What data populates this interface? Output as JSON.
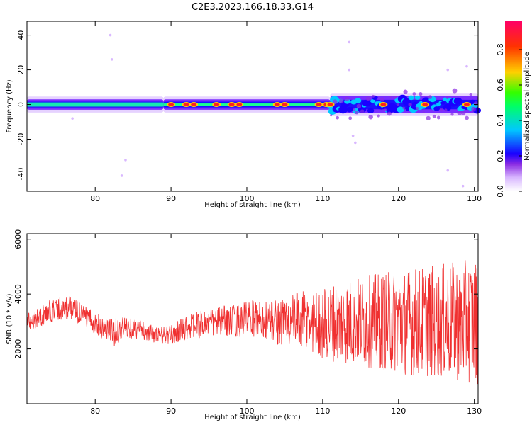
{
  "figure": {
    "title": "C2E3.2023.166.18.33.G14"
  },
  "chart_data": [
    {
      "type": "heatmap",
      "title": "C2E3.2023.166.18.33.G14",
      "xlabel": "Height of straight line (km)",
      "ylabel": "Frequency (Hz)",
      "xlim": [
        71,
        130.5
      ],
      "ylim": [
        -50,
        48
      ],
      "x_ticks": [
        80,
        90,
        100,
        110,
        120,
        130
      ],
      "y_ticks": [
        -40,
        -20,
        0,
        20,
        40
      ],
      "colorbar": {
        "label": "Normalized spectral amplitude",
        "ticks": [
          0.0,
          0.2,
          0.4,
          0.6,
          0.8
        ],
        "range": [
          0,
          0.96
        ],
        "colors": [
          "#ffffff",
          "#d9b8ff",
          "#8a2be2",
          "#1a00ff",
          "#00c8ff",
          "#00ff66",
          "#33ff00",
          "#ffd000",
          "#ff3300",
          "#ff0066"
        ]
      },
      "band": {
        "center_hz": 0,
        "segments": [
          {
            "x_start": 71,
            "x_end": 89,
            "half_width_hz": 3,
            "description": "steady band"
          },
          {
            "x_start": 89,
            "x_end": 111,
            "half_width_hz": 3,
            "description": "band with peaks"
          },
          {
            "x_start": 111,
            "x_end": 130.5,
            "half_width_hz": 5,
            "description": "noisy band"
          }
        ],
        "peaks_x": [
          90,
          92,
          93,
          96,
          98,
          99,
          104,
          105,
          109.5,
          110.5,
          111,
          118,
          123.5,
          129
        ]
      }
    },
    {
      "type": "line",
      "xlabel": "Height of straight line (km)",
      "ylabel": "SNR (10 * v/v)",
      "xlim": [
        71,
        130.5
      ],
      "ylim": [
        0,
        6200
      ],
      "x_ticks": [
        80,
        90,
        100,
        110,
        120,
        130
      ],
      "y_ticks": [
        2000,
        4000,
        6000
      ],
      "color": "#f03030",
      "envelope": {
        "x": [
          71,
          73,
          75,
          77,
          79,
          81,
          82.5,
          84,
          86,
          88,
          90,
          92,
          94,
          96,
          98,
          100,
          102,
          104,
          106,
          108,
          110,
          112,
          114,
          116,
          118,
          120,
          122,
          124,
          126,
          128,
          130
        ],
        "mean": [
          3000,
          3200,
          3500,
          3500,
          3100,
          2800,
          2600,
          2800,
          2700,
          2500,
          2500,
          2800,
          2900,
          3000,
          3000,
          3100,
          3100,
          3000,
          3000,
          3000,
          2900,
          3000,
          3000,
          3000,
          3000,
          3000,
          3000,
          3000,
          3000,
          3000,
          3000
        ],
        "spread": [
          350,
          400,
          450,
          450,
          400,
          450,
          500,
          400,
          350,
          300,
          350,
          450,
          500,
          550,
          600,
          650,
          700,
          850,
          1000,
          1150,
          1300,
          1500,
          1600,
          1700,
          1800,
          1900,
          2000,
          2050,
          2100,
          2200,
          2300
        ]
      }
    }
  ]
}
